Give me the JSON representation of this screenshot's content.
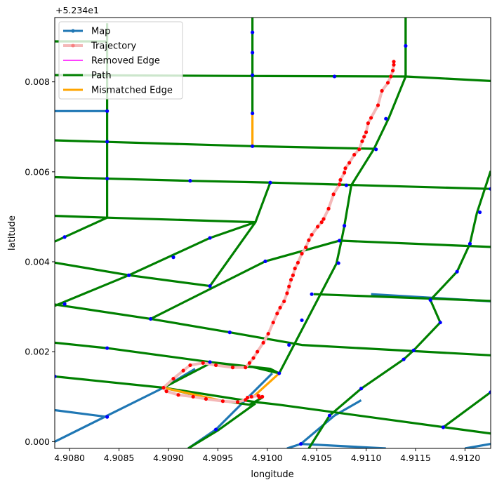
{
  "chart_data": {
    "type": "line",
    "xlabel": "longitude",
    "ylabel": "latitude",
    "offset_label": "+5.234e1",
    "xlim": [
      4.90785,
      4.91226
    ],
    "ylim": [
      -0.00015,
      0.00943
    ],
    "xticks": [
      4.908,
      4.9085,
      4.909,
      4.9095,
      4.91,
      4.9105,
      4.911,
      4.9115,
      4.912
    ],
    "xtick_labels": [
      "4.9080",
      "4.9085",
      "4.9090",
      "4.9095",
      "4.9100",
      "4.9105",
      "4.9110",
      "4.9115",
      "4.9120"
    ],
    "yticks": [
      0.0,
      0.002,
      0.004,
      0.006,
      0.008
    ],
    "ytick_labels": [
      "0.000",
      "0.002",
      "0.004",
      "0.006",
      "0.008"
    ],
    "legend_position": "top-left",
    "colors": {
      "map": "#1f77b4",
      "node": "#0000ff",
      "trajectory_line": "#f4b8b8",
      "trajectory_point": "#ff0000",
      "removed_edge": "#ff00ff",
      "path": "#008000",
      "mismatched_edge": "#ffa500"
    },
    "legend": [
      {
        "key": "map",
        "label": "Map"
      },
      {
        "key": "trajectory",
        "label": "Trajectory"
      },
      {
        "key": "removed",
        "label": "Removed Edge"
      },
      {
        "key": "path",
        "label": "Path"
      },
      {
        "key": "mismatched",
        "label": "Mismatched Edge"
      }
    ],
    "series": {
      "map": [
        [
          [
            4.90785,
            0.00735
          ],
          [
            4.90838,
            0.00735
          ]
        ],
        [
          [
            4.90785,
            0.0007
          ],
          [
            4.90838,
            0.00055
          ]
        ],
        [
          [
            4.90785,
            0.0
          ],
          [
            4.90895,
            0.0012
          ]
        ],
        [
          [
            4.90895,
            0.0012
          ],
          [
            4.90927,
            0.00162
          ]
        ],
        [
          [
            4.91005,
            0.00152
          ],
          [
            4.90948,
            0.00027
          ]
        ],
        [
          [
            4.90948,
            0.00027
          ],
          [
            4.9092,
            -0.00015
          ]
        ],
        [
          [
            4.9102,
            -0.00015
          ],
          [
            4.91034,
            -5e-05
          ]
        ],
        [
          [
            4.91034,
            -5e-05
          ],
          [
            4.9112,
            -0.00015
          ]
        ],
        [
          [
            4.91034,
            -5e-05
          ],
          [
            4.91068,
            0.00058
          ]
        ],
        [
          [
            4.91068,
            0.00058
          ],
          [
            4.91095,
            0.00092
          ]
        ],
        [
          [
            4.91105,
            0.00328
          ],
          [
            4.91226,
            0.00312
          ]
        ],
        [
          [
            4.91226,
            -5e-05
          ],
          [
            4.912,
            -0.00015
          ]
        ]
      ],
      "path": [
        [
          [
            4.90785,
            0.0089
          ],
          [
            4.90838,
            0.0089
          ]
        ],
        [
          [
            4.90838,
            0.0093
          ],
          [
            4.90838,
            0.00498
          ]
        ],
        [
          [
            4.90785,
            0.00815
          ],
          [
            4.90985,
            0.00813
          ],
          [
            4.9114,
            0.00812
          ],
          [
            4.91226,
            0.00802
          ]
        ],
        [
          [
            4.90985,
            0.00943
          ],
          [
            4.90985,
            0.0073
          ]
        ],
        [
          [
            4.9114,
            0.00943
          ],
          [
            4.9114,
            0.00812
          ]
        ],
        [
          [
            4.90785,
            0.0067
          ],
          [
            4.90985,
            0.00657
          ],
          [
            4.9111,
            0.00651
          ]
        ],
        [
          [
            4.90785,
            0.00588
          ],
          [
            4.90922,
            0.0058
          ],
          [
            4.91003,
            0.00576
          ],
          [
            4.9108,
            0.00571
          ],
          [
            4.91226,
            0.00562
          ]
        ],
        [
          [
            4.90785,
            0.00502
          ],
          [
            4.90838,
            0.00498
          ],
          [
            4.90988,
            0.00488
          ]
        ],
        [
          [
            4.90785,
            0.00445
          ],
          [
            4.90838,
            0.00498
          ]
        ],
        [
          [
            4.90785,
            0.00302
          ],
          [
            4.9086,
            0.0037
          ],
          [
            4.90942,
            0.00453
          ],
          [
            4.90988,
            0.00488
          ],
          [
            4.91003,
            0.00576
          ]
        ],
        [
          [
            4.90785,
            0.00398
          ],
          [
            4.9086,
            0.0037
          ],
          [
            4.90942,
            0.00346
          ]
        ],
        [
          [
            4.90942,
            0.00346
          ],
          [
            4.90988,
            0.00488
          ]
        ],
        [
          [
            4.90785,
            0.00305
          ],
          [
            4.90882,
            0.00273
          ],
          [
            4.90962,
            0.00243
          ],
          [
            4.91035,
            0.00215
          ],
          [
            4.91226,
            0.00192
          ]
        ],
        [
          [
            4.90882,
            0.00273
          ],
          [
            4.90998,
            0.00401
          ],
          [
            4.91073,
            0.00447
          ]
        ],
        [
          [
            4.90785,
            0.0022
          ],
          [
            4.90838,
            0.00208
          ],
          [
            4.90942,
            0.00177
          ],
          [
            4.91003,
            0.00162
          ],
          [
            4.91012,
            0.00152
          ],
          [
            4.9107,
            0.00396
          ],
          [
            4.91075,
            0.00447
          ],
          [
            4.91078,
            0.0048
          ],
          [
            4.91085,
            0.0057
          ],
          [
            4.91108,
            0.00651
          ],
          [
            4.91123,
            0.0072
          ],
          [
            4.9114,
            0.00812
          ],
          [
            4.9114,
            0.00943
          ]
        ],
        [
          [
            4.91073,
            0.00447
          ],
          [
            4.91226,
            0.00433
          ]
        ],
        [
          [
            4.91047,
            0.00328
          ],
          [
            4.91226,
            0.00313
          ]
        ],
        [
          [
            4.90785,
            0.00145
          ],
          [
            4.90895,
            0.0012
          ],
          [
            4.90988,
            0.00088
          ],
          [
            4.91012,
            0.00082
          ],
          [
            4.91226,
            0.00018
          ]
        ],
        [
          [
            4.90895,
            0.0012
          ],
          [
            4.90942,
            0.00174
          ],
          [
            4.90985,
            0.00166
          ],
          [
            4.91012,
            0.00152
          ]
        ],
        [
          [
            4.90895,
            0.0012
          ],
          [
            4.90948,
            0.00093
          ],
          [
            4.90982,
            0.00082
          ],
          [
            4.90995,
            0.00098
          ]
        ],
        [
          [
            4.9092,
            -0.00015
          ],
          [
            4.9095,
            0.00025
          ],
          [
            4.90988,
            0.00085
          ]
        ],
        [
          [
            4.91226,
            0.00602
          ],
          [
            4.91212,
            0.00508
          ],
          [
            4.91205,
            0.0044
          ],
          [
            4.91192,
            0.00378
          ],
          [
            4.91165,
            0.00315
          ],
          [
            4.91175,
            0.00265
          ],
          [
            4.91148,
            0.00203
          ],
          [
            4.91138,
            0.00183
          ],
          [
            4.91095,
            0.00118
          ],
          [
            4.91063,
            0.00058
          ],
          [
            4.91042,
            -0.00015
          ]
        ],
        [
          [
            4.91178,
            0.00032
          ],
          [
            4.91226,
            0.0011
          ]
        ]
      ],
      "mismatched": [
        [
          [
            4.90985,
            0.00728
          ],
          [
            4.90985,
            0.00657
          ]
        ],
        [
          [
            4.90985,
            0.00098
          ],
          [
            4.91012,
            0.00152
          ]
        ],
        [
          [
            4.90895,
            0.0012
          ],
          [
            4.9095,
            0.00093
          ]
        ]
      ],
      "removed": [],
      "trajectory": [
        [
          4.91128,
          0.00845
        ],
        [
          4.91128,
          0.00838
        ],
        [
          4.91127,
          0.00825
        ],
        [
          4.91125,
          0.00812
        ],
        [
          4.91122,
          0.00798
        ],
        [
          4.91116,
          0.0078
        ],
        [
          4.91112,
          0.00748
        ],
        [
          4.91105,
          0.0072
        ],
        [
          4.91102,
          0.00708
        ],
        [
          4.911,
          0.00688
        ],
        [
          4.91098,
          0.00678
        ],
        [
          4.91096,
          0.00668
        ],
        [
          4.91093,
          0.0065
        ],
        [
          4.91088,
          0.00638
        ],
        [
          4.91083,
          0.0062
        ],
        [
          4.91079,
          0.00608
        ],
        [
          4.91078,
          0.00598
        ],
        [
          4.91074,
          0.00582
        ],
        [
          4.91073,
          0.00572
        ],
        [
          4.91067,
          0.0055
        ],
        [
          4.91062,
          0.00518
        ],
        [
          4.91057,
          0.00495
        ],
        [
          4.91055,
          0.00488
        ],
        [
          4.91051,
          0.00478
        ],
        [
          4.91045,
          0.0046
        ],
        [
          4.91042,
          0.00448
        ],
        [
          4.91039,
          0.00432
        ],
        [
          4.91035,
          0.00418
        ],
        [
          4.91031,
          0.00398
        ],
        [
          4.91028,
          0.00385
        ],
        [
          4.91026,
          0.0037
        ],
        [
          4.91024,
          0.0036
        ],
        [
          4.91022,
          0.00345
        ],
        [
          4.9102,
          0.0033
        ],
        [
          4.91017,
          0.00312
        ],
        [
          4.91013,
          0.00298
        ],
        [
          4.9101,
          0.00285
        ],
        [
          4.91006,
          0.00265
        ],
        [
          4.91001,
          0.0024
        ],
        [
          4.90996,
          0.0022
        ],
        [
          4.9099,
          0.002
        ],
        [
          4.90986,
          0.00186
        ],
        [
          4.90982,
          0.00175
        ],
        [
          4.90978,
          0.00165
        ],
        [
          4.90965,
          0.00165
        ],
        [
          4.90948,
          0.0017
        ],
        [
          4.90935,
          0.00175
        ],
        [
          4.90922,
          0.0017
        ],
        [
          4.90915,
          0.00158
        ],
        [
          4.90905,
          0.0014
        ],
        [
          4.90895,
          0.0012
        ],
        [
          4.90898,
          0.00112
        ],
        [
          4.9091,
          0.00104
        ],
        [
          4.90925,
          0.001
        ],
        [
          4.90938,
          0.00095
        ],
        [
          4.90955,
          0.0009
        ],
        [
          4.9097,
          0.00088
        ],
        [
          4.90978,
          0.00093
        ],
        [
          4.9098,
          0.00098
        ],
        [
          4.90984,
          0.001
        ],
        [
          4.90991,
          0.00102
        ],
        [
          4.90995,
          0.001
        ],
        [
          4.90992,
          0.00098
        ]
      ],
      "nodes": [
        [
          4.90985,
          0.0091
        ],
        [
          4.90985,
          0.00865
        ],
        [
          4.90985,
          0.00815
        ],
        [
          4.91068,
          0.00812
        ],
        [
          4.9114,
          0.0088
        ],
        [
          4.90985,
          0.0073
        ],
        [
          4.90985,
          0.00657
        ],
        [
          4.90838,
          0.00735
        ],
        [
          4.90838,
          0.00667
        ],
        [
          4.90838,
          0.00585
        ],
        [
          4.90922,
          0.0058
        ],
        [
          4.91003,
          0.00576
        ],
        [
          4.9112,
          0.00718
        ],
        [
          4.9111,
          0.0065
        ],
        [
          4.9108,
          0.0057
        ],
        [
          4.91078,
          0.0048
        ],
        [
          4.90795,
          0.00455
        ],
        [
          4.9086,
          0.0037
        ],
        [
          4.90942,
          0.00453
        ],
        [
          4.90905,
          0.0041
        ],
        [
          4.90942,
          0.00346
        ],
        [
          4.90998,
          0.00401
        ],
        [
          4.91072,
          0.00397
        ],
        [
          4.91073,
          0.00447
        ],
        [
          4.91045,
          0.00328
        ],
        [
          4.91035,
          0.0027
        ],
        [
          4.91022,
          0.00215
        ],
        [
          4.90962,
          0.00243
        ],
        [
          4.90882,
          0.00273
        ],
        [
          4.90795,
          0.00306
        ],
        [
          4.90838,
          0.00208
        ],
        [
          4.90942,
          0.00177
        ],
        [
          4.91012,
          0.00152
        ],
        [
          4.91226,
          0.00562
        ],
        [
          4.91215,
          0.0051
        ],
        [
          4.91205,
          0.0044
        ],
        [
          4.91192,
          0.00378
        ],
        [
          4.91165,
          0.00315
        ],
        [
          4.91175,
          0.00265
        ],
        [
          4.91148,
          0.00203
        ],
        [
          4.91138,
          0.00183
        ],
        [
          4.91095,
          0.00118
        ],
        [
          4.91063,
          0.00058
        ],
        [
          4.91178,
          0.00032
        ],
        [
          4.91226,
          0.0011
        ],
        [
          4.90838,
          0.00055
        ],
        [
          4.90785,
          0.00145
        ],
        [
          4.90948,
          0.00027
        ],
        [
          4.91034,
          -5e-05
        ]
      ]
    }
  }
}
